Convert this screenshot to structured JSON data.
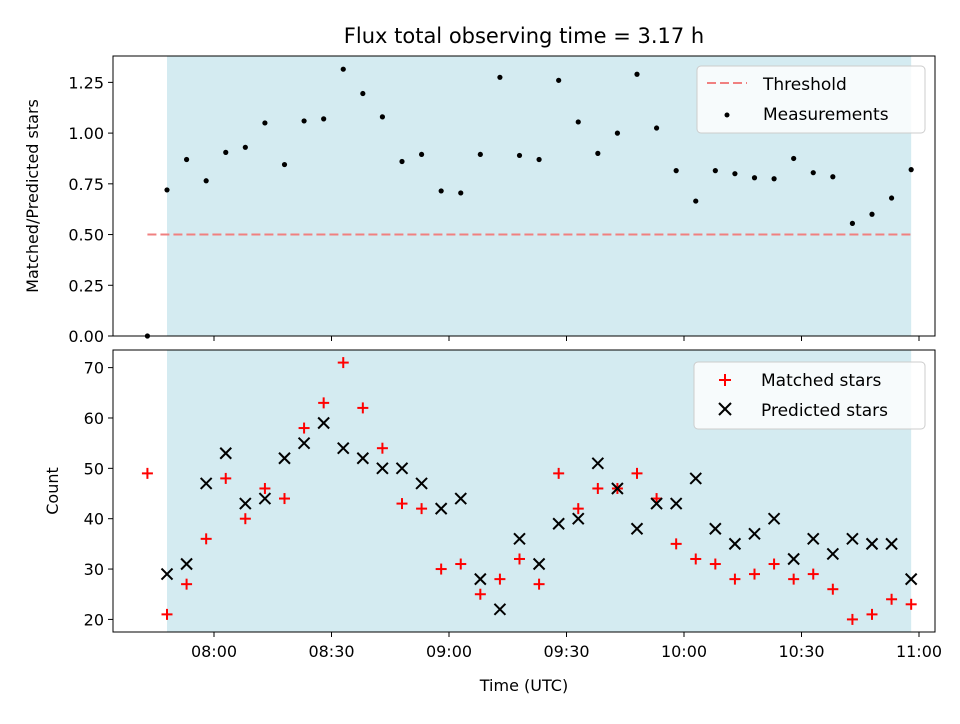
{
  "title": "Flux total observing time = 3.17 h",
  "colors": {
    "observing_band": "#d4ebf1",
    "threshold": "#f08080",
    "measurement": "#000000",
    "matched": "#ff0000",
    "predicted": "#000000"
  },
  "chart_data": [
    {
      "type": "scatter",
      "panel": "top",
      "title": "Flux total observing time = 3.17 h",
      "xlabel": "",
      "ylabel": "Matched/Predicted stars",
      "ylim": [
        0,
        1.38
      ],
      "yticks": [
        "0.00",
        "0.25",
        "0.50",
        "0.75",
        "1.00",
        "1.25"
      ],
      "legend_position": "top-right",
      "observing_window": [
        "07:48",
        "10:58"
      ],
      "threshold": {
        "name": "Threshold",
        "value": 0.5,
        "x_range": [
          "07:43",
          "10:58"
        ]
      },
      "series": [
        {
          "name": "Measurements",
          "x": [
            "07:43",
            "07:48",
            "07:53",
            "07:58",
            "08:03",
            "08:08",
            "08:13",
            "08:18",
            "08:23",
            "08:28",
            "08:33",
            "08:38",
            "08:43",
            "08:48",
            "08:53",
            "08:58",
            "09:03",
            "09:08",
            "09:13",
            "09:18",
            "09:23",
            "09:28",
            "09:33",
            "09:38",
            "09:43",
            "09:48",
            "09:53",
            "09:58",
            "10:03",
            "10:08",
            "10:13",
            "10:18",
            "10:23",
            "10:28",
            "10:33",
            "10:38",
            "10:43",
            "10:48",
            "10:53",
            "10:58"
          ],
          "y": [
            0.0,
            0.72,
            0.87,
            0.765,
            0.905,
            0.93,
            1.05,
            0.845,
            1.06,
            1.07,
            1.315,
            1.195,
            1.08,
            0.86,
            0.895,
            0.715,
            0.705,
            0.895,
            1.275,
            0.89,
            0.87,
            1.26,
            1.055,
            0.9,
            1.0,
            1.29,
            1.025,
            0.815,
            0.665,
            0.815,
            0.8,
            0.78,
            0.775,
            0.875,
            0.805,
            0.785,
            0.555,
            0.6,
            0.68,
            0.82
          ]
        }
      ]
    },
    {
      "type": "scatter",
      "panel": "bottom",
      "xlabel": "Time (UTC)",
      "ylabel": "Count",
      "ylim": [
        17.5,
        73.5
      ],
      "yticks": [
        "20",
        "30",
        "40",
        "50",
        "60",
        "70"
      ],
      "xticks": [
        "08:00",
        "08:30",
        "09:00",
        "09:30",
        "10:00",
        "10:30",
        "11:00"
      ],
      "legend_position": "top-right",
      "observing_window": [
        "07:48",
        "10:58"
      ],
      "series": [
        {
          "name": "Matched stars",
          "marker": "plus",
          "x": [
            "07:43",
            "07:48",
            "07:53",
            "07:58",
            "08:03",
            "08:08",
            "08:13",
            "08:18",
            "08:23",
            "08:28",
            "08:33",
            "08:38",
            "08:43",
            "08:48",
            "08:53",
            "08:58",
            "09:03",
            "09:08",
            "09:13",
            "09:18",
            "09:23",
            "09:28",
            "09:33",
            "09:38",
            "09:43",
            "09:48",
            "09:53",
            "09:58",
            "10:03",
            "10:08",
            "10:13",
            "10:18",
            "10:23",
            "10:28",
            "10:33",
            "10:38",
            "10:43",
            "10:48",
            "10:53",
            "10:58"
          ],
          "y": [
            49,
            21,
            27,
            36,
            48,
            40,
            46,
            44,
            58,
            63,
            71,
            62,
            54,
            43,
            42,
            30,
            31,
            25,
            28,
            32,
            27,
            49,
            42,
            46,
            46,
            49,
            44,
            35,
            32,
            31,
            28,
            29,
            31,
            28,
            29,
            26,
            20,
            21,
            24,
            23
          ]
        },
        {
          "name": "Predicted stars",
          "marker": "x",
          "x": [
            "07:48",
            "07:53",
            "07:58",
            "08:03",
            "08:08",
            "08:13",
            "08:18",
            "08:23",
            "08:28",
            "08:33",
            "08:38",
            "08:43",
            "08:48",
            "08:53",
            "08:58",
            "09:03",
            "09:08",
            "09:13",
            "09:18",
            "09:23",
            "09:28",
            "09:33",
            "09:38",
            "09:43",
            "09:48",
            "09:53",
            "09:58",
            "10:03",
            "10:08",
            "10:13",
            "10:18",
            "10:23",
            "10:28",
            "10:33",
            "10:38",
            "10:43",
            "10:48",
            "10:53",
            "10:58"
          ],
          "y": [
            29,
            31,
            47,
            53,
            43,
            44,
            52,
            55,
            59,
            54,
            52,
            50,
            50,
            47,
            42,
            44,
            28,
            22,
            36,
            31,
            39,
            40,
            51,
            46,
            38,
            43,
            43,
            48,
            38,
            35,
            37,
            40,
            32,
            36,
            33,
            36,
            35,
            35,
            28
          ]
        }
      ]
    }
  ]
}
